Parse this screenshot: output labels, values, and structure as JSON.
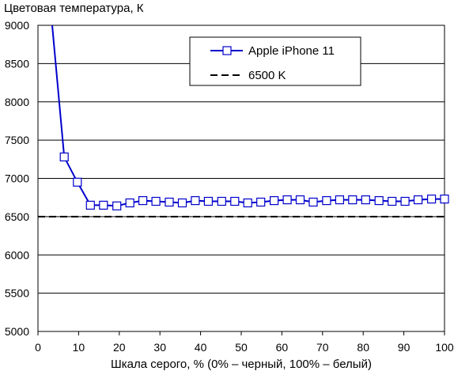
{
  "chart_data": {
    "type": "line",
    "title": "",
    "ylabel": "Цветовая температура, К",
    "xlabel": "Шкала серого, % (0% – черный, 100% – белый)",
    "xlim": [
      0,
      100
    ],
    "ylim": [
      5000,
      9000
    ],
    "xticks": [
      "0",
      "10",
      "20",
      "30",
      "40",
      "50",
      "60",
      "70",
      "80",
      "90",
      "100"
    ],
    "yticks": [
      "5000",
      "5500",
      "6000",
      "6500",
      "7000",
      "7500",
      "8000",
      "8500",
      "9000"
    ],
    "grid": "horizontal",
    "legend_position": "top-right",
    "series": [
      {
        "name": "Apple iPhone 11",
        "color": "#0000cc",
        "marker": "hollow-square",
        "leading_line_from": [
          3.5,
          9000
        ],
        "x": [
          6.45,
          9.68,
          12.9,
          16.1,
          19.4,
          22.6,
          25.8,
          29.0,
          32.3,
          35.5,
          38.7,
          41.9,
          45.2,
          48.4,
          51.6,
          54.8,
          58.1,
          61.3,
          64.5,
          67.7,
          71.0,
          74.2,
          77.4,
          80.6,
          83.9,
          87.1,
          90.3,
          93.5,
          96.8,
          100
        ],
        "values": [
          7280,
          6950,
          6650,
          6650,
          6640,
          6680,
          6710,
          6700,
          6690,
          6680,
          6710,
          6700,
          6700,
          6700,
          6680,
          6690,
          6710,
          6720,
          6720,
          6690,
          6710,
          6720,
          6720,
          6720,
          6710,
          6700,
          6700,
          6720,
          6730,
          6730
        ]
      },
      {
        "name": "6500 K",
        "color": "#000000",
        "style": "dashed",
        "x": [
          0,
          100
        ],
        "values": [
          6500,
          6500
        ]
      }
    ]
  }
}
